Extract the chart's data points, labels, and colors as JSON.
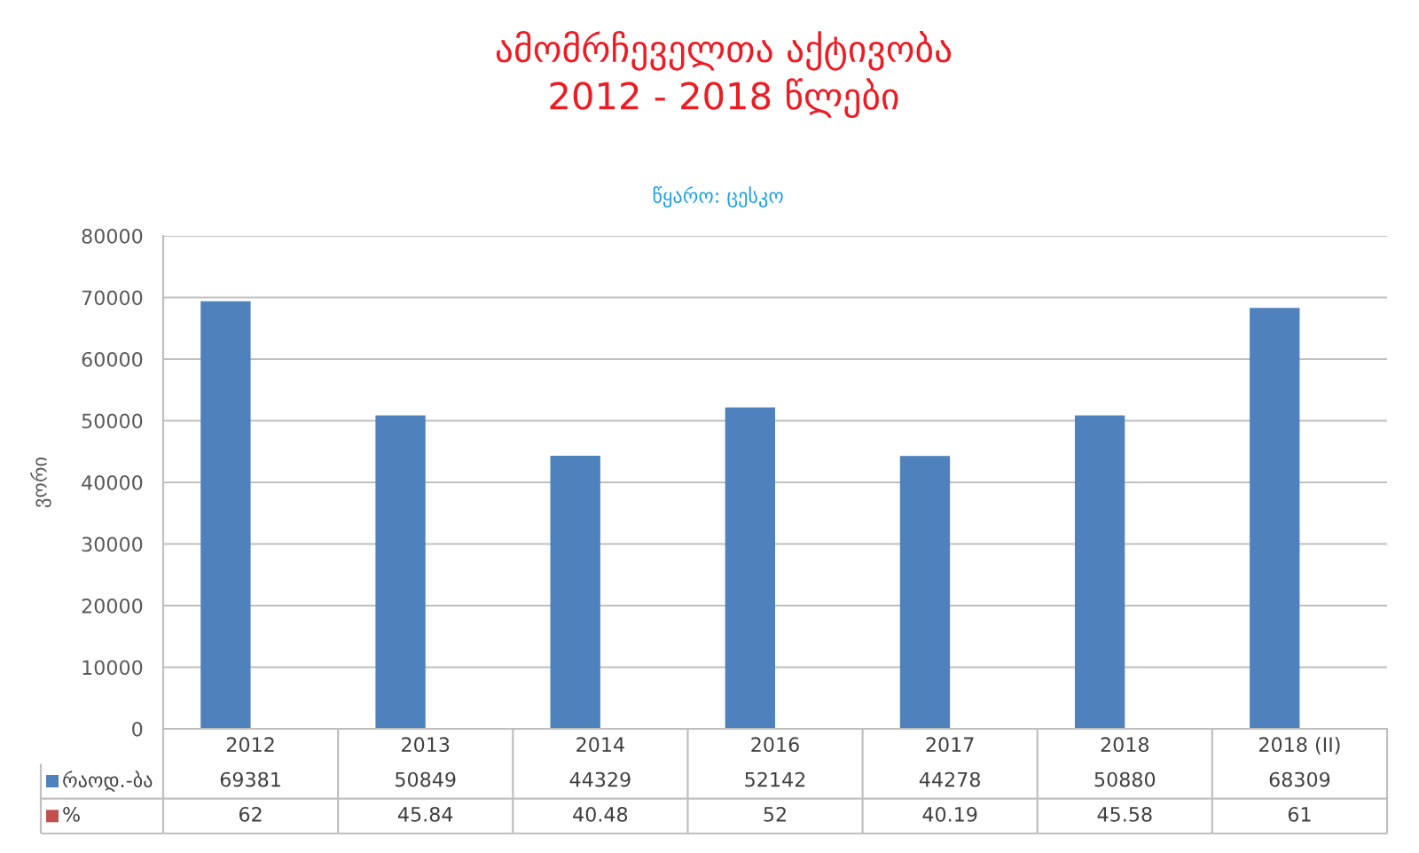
{
  "chart_data": {
    "type": "bar",
    "title": "ამომრჩეველთა აქტივობა\n2012 - 2018 წლები",
    "subtitle": "წყარო: ცესკო",
    "ylabel": "ვორი",
    "categories": [
      "2012",
      "2013",
      "2014",
      "2016",
      "2017",
      "2018",
      "2018 (II)"
    ],
    "series": [
      {
        "name": "რაოდ.-ბა",
        "color": "#4f81bd",
        "values": [
          69381,
          50849,
          44329,
          52142,
          44278,
          50880,
          68309
        ]
      },
      {
        "name": "%",
        "color": "#c0504d",
        "values": [
          62,
          45.84,
          40.48,
          52,
          40.19,
          45.58,
          61
        ]
      }
    ],
    "ylim": [
      0,
      80000
    ],
    "yticks": [
      0,
      10000,
      20000,
      30000,
      40000,
      50000,
      60000,
      70000,
      80000
    ],
    "grid": "y",
    "data_labels": true,
    "legend": "bottom"
  }
}
